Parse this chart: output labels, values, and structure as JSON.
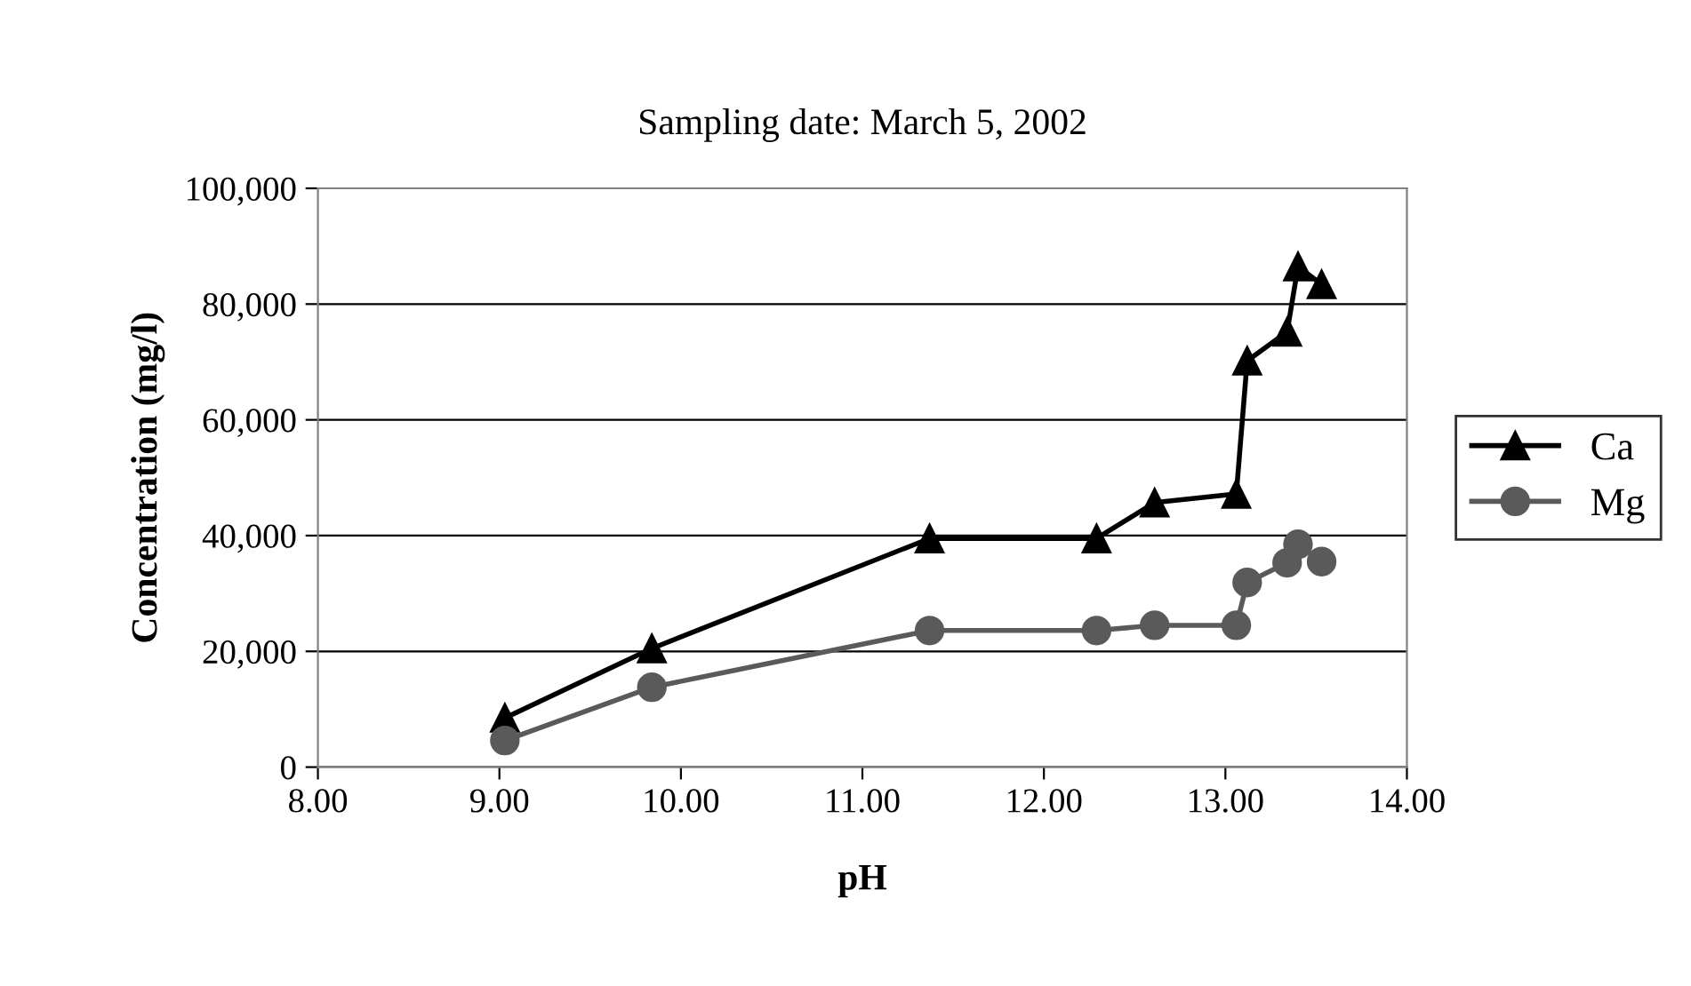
{
  "chart_data": {
    "type": "line",
    "title": "Sampling date: March 5, 2002",
    "xlabel": "pH",
    "ylabel": "Concentration (mg/l)",
    "series": [
      {
        "name": "Ca",
        "color": "#000000",
        "marker": "triangle",
        "x": [
          9.03,
          9.84,
          11.37,
          12.29,
          12.61,
          13.06,
          13.12,
          13.34,
          13.4,
          13.53
        ],
        "values": [
          8500,
          20500,
          39500,
          39500,
          45700,
          47200,
          70200,
          75200,
          86500,
          83400
        ]
      },
      {
        "name": "Mg",
        "color": "#5a5a5a",
        "marker": "circle",
        "x": [
          9.03,
          9.84,
          11.37,
          12.29,
          12.61,
          13.06,
          13.12,
          13.34,
          13.4,
          13.53
        ],
        "values": [
          4600,
          13800,
          23600,
          23600,
          24500,
          24500,
          31900,
          35300,
          38500,
          35500
        ]
      }
    ],
    "xlim": [
      8,
      14
    ],
    "xticks": [
      {
        "value": 8,
        "label": "8.00"
      },
      {
        "value": 9,
        "label": "9.00"
      },
      {
        "value": 10,
        "label": "10.00"
      },
      {
        "value": 11,
        "label": "11.00"
      },
      {
        "value": 12,
        "label": "12.00"
      },
      {
        "value": 13,
        "label": "13.00"
      },
      {
        "value": 14,
        "label": "14.00"
      }
    ],
    "ylim": [
      0,
      100000
    ],
    "yticks": [
      0,
      {
        "value": 20000,
        "label": "20,000"
      },
      {
        "value": 40000,
        "label": "40,000"
      },
      {
        "value": 60000,
        "label": "60,000"
      },
      {
        "value": 80000,
        "label": "80,000"
      },
      {
        "value": 100000,
        "label": "100,000"
      }
    ],
    "grid": "y",
    "legend": "right",
    "line_style": "solid"
  }
}
